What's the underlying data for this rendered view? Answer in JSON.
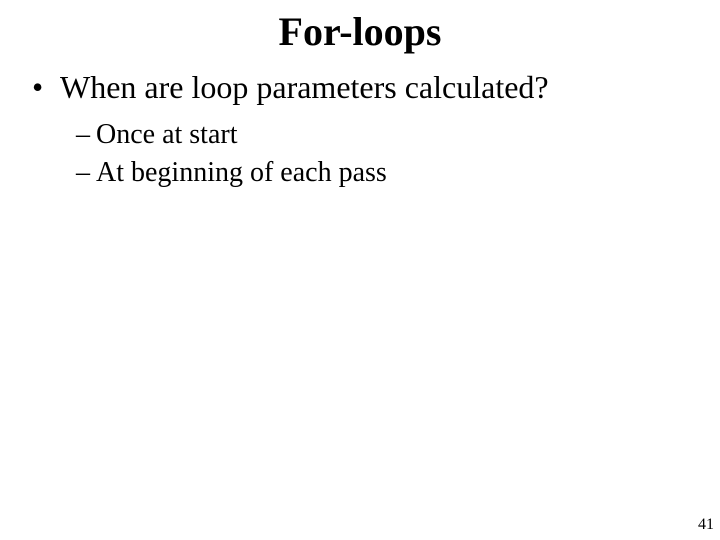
{
  "slide": {
    "title": "For-loops",
    "bullets": [
      {
        "level": 1,
        "marker": "•",
        "text": "When are loop parameters calculated?"
      },
      {
        "level": 2,
        "marker": "–",
        "text": "Once at start"
      },
      {
        "level": 2,
        "marker": "–",
        "text": "At beginning of each pass"
      }
    ],
    "page_number": "41"
  },
  "style": {
    "background_color": "#ffffff",
    "text_color": "#000000",
    "font_family": "Times New Roman",
    "title_fontsize": 40,
    "title_fontweight": "bold",
    "l1_fontsize": 32,
    "l2_fontsize": 28,
    "page_number_fontsize": 16
  }
}
